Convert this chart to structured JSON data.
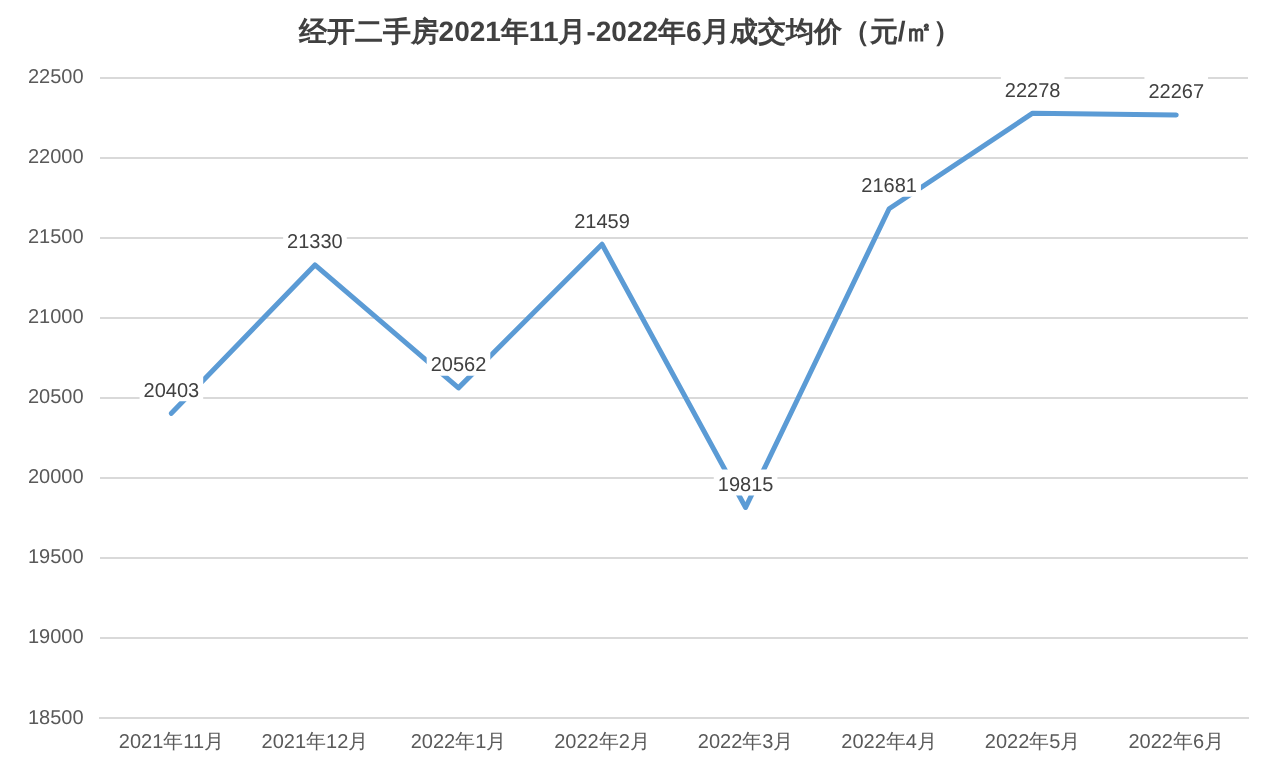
{
  "chart_data": {
    "type": "line",
    "title": "经开二手房2021年11月-2022年6月成交均价（元/㎡）",
    "categories": [
      "2021年11月",
      "2021年12月",
      "2022年1月",
      "2022年2月",
      "2022年3月",
      "2022年4月",
      "2022年5月",
      "2022年6月"
    ],
    "series": [
      {
        "color": "#5b9bd5",
        "values": [
          20403,
          21330,
          20562,
          21459,
          19815,
          21681,
          22278,
          22267
        ]
      }
    ],
    "ylim": [
      18500,
      22500
    ],
    "yticks": [
      18500,
      19000,
      19500,
      20000,
      20500,
      21000,
      21500,
      22000,
      22500
    ],
    "grid": "y",
    "data_labels": true,
    "legend": false,
    "marker": "none",
    "line_style": "solid"
  }
}
